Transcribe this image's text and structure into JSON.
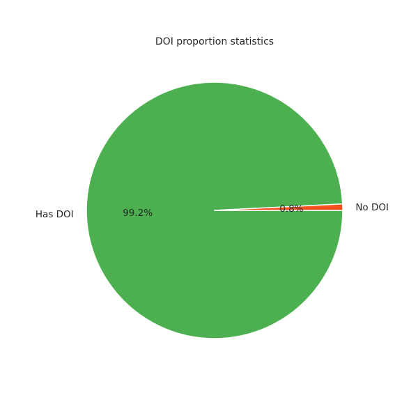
{
  "chart_data": {
    "type": "pie",
    "title": "DOI proportion statistics",
    "labels": [
      "Has DOI",
      "No DOI"
    ],
    "values": [
      99.2,
      0.8
    ],
    "percent_labels": [
      "99.2%",
      "0.8%"
    ],
    "colors": [
      "#4caf50",
      "#f4511e"
    ],
    "start_angle_deg": 0,
    "direction": "clockwise",
    "edge_color": "#ffffff"
  }
}
